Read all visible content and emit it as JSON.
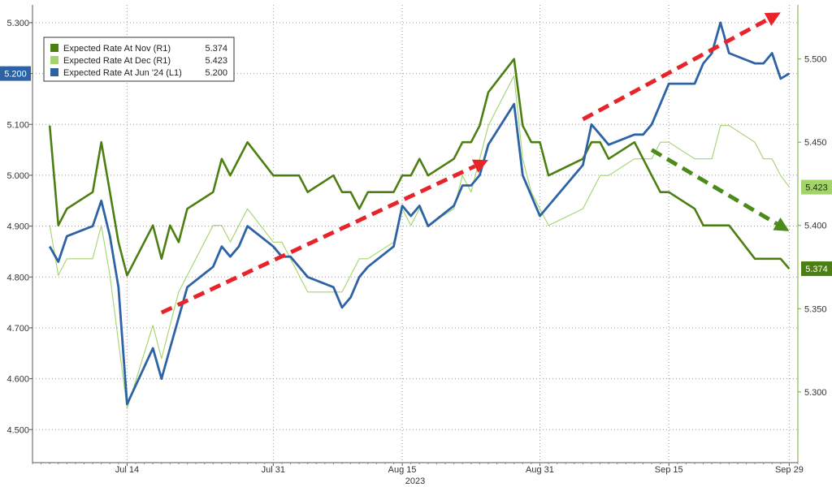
{
  "chart_data": {
    "type": "line",
    "title": "",
    "xlabel": "2023",
    "x_ticks": [
      "Jul 14",
      "Jul 31",
      "Aug 15",
      "Aug 31",
      "Sep 15",
      "Sep 29"
    ],
    "left_axis": {
      "ticks": [
        "4.500",
        "4.600",
        "4.700",
        "4.800",
        "4.900",
        "5.000",
        "5.100",
        "5.200",
        "5.300"
      ],
      "range": [
        4.435,
        5.335
      ]
    },
    "right_axis": {
      "ticks": [
        "5.300",
        "5.350",
        "5.400",
        "5.450",
        "5.500"
      ],
      "range": [
        5.2575,
        5.5325
      ]
    },
    "grid": true,
    "legend_position": "top-left",
    "series": [
      {
        "name": "Expected Rate At Nov (R1)",
        "last_value": "5.374",
        "axis": "right",
        "color": "#4c7f12",
        "points": [
          [
            "Jul 5",
            5.46
          ],
          [
            "Jul 6",
            5.4
          ],
          [
            "Jul 7",
            5.41
          ],
          [
            "Jul 10",
            5.42
          ],
          [
            "Jul 11",
            5.45
          ],
          [
            "Jul 12",
            5.42
          ],
          [
            "Jul 13",
            5.39
          ],
          [
            "Jul 14",
            5.37
          ],
          [
            "Jul 17",
            5.4
          ],
          [
            "Jul 18",
            5.38
          ],
          [
            "Jul 19",
            5.4
          ],
          [
            "Jul 20",
            5.39
          ],
          [
            "Jul 21",
            5.41
          ],
          [
            "Jul 24",
            5.42
          ],
          [
            "Jul 25",
            5.44
          ],
          [
            "Jul 26",
            5.43
          ],
          [
            "Jul 27",
            5.44
          ],
          [
            "Jul 28",
            5.45
          ],
          [
            "Jul 31",
            5.43
          ],
          [
            "Aug 1",
            5.43
          ],
          [
            "Aug 2",
            5.43
          ],
          [
            "Aug 3",
            5.43
          ],
          [
            "Aug 4",
            5.42
          ],
          [
            "Aug 7",
            5.43
          ],
          [
            "Aug 8",
            5.42
          ],
          [
            "Aug 9",
            5.42
          ],
          [
            "Aug 10",
            5.41
          ],
          [
            "Aug 11",
            5.42
          ],
          [
            "Aug 14",
            5.42
          ],
          [
            "Aug 15",
            5.43
          ],
          [
            "Aug 16",
            5.43
          ],
          [
            "Aug 17",
            5.44
          ],
          [
            "Aug 18",
            5.43
          ],
          [
            "Aug 21",
            5.44
          ],
          [
            "Aug 22",
            5.45
          ],
          [
            "Aug 23",
            5.45
          ],
          [
            "Aug 24",
            5.46
          ],
          [
            "Aug 25",
            5.48
          ],
          [
            "Aug 28",
            5.5
          ],
          [
            "Aug 29",
            5.46
          ],
          [
            "Aug 30",
            5.45
          ],
          [
            "Aug 31",
            5.45
          ],
          [
            "Sep 1",
            5.43
          ],
          [
            "Sep 5",
            5.44
          ],
          [
            "Sep 6",
            5.45
          ],
          [
            "Sep 7",
            5.45
          ],
          [
            "Sep 8",
            5.44
          ],
          [
            "Sep 11",
            5.45
          ],
          [
            "Sep 12",
            5.44
          ],
          [
            "Sep 13",
            5.43
          ],
          [
            "Sep 14",
            5.42
          ],
          [
            "Sep 15",
            5.42
          ],
          [
            "Sep 18",
            5.41
          ],
          [
            "Sep 19",
            5.4
          ],
          [
            "Sep 20",
            5.4
          ],
          [
            "Sep 21",
            5.4
          ],
          [
            "Sep 22",
            5.4
          ],
          [
            "Sep 25",
            5.38
          ],
          [
            "Sep 26",
            5.38
          ],
          [
            "Sep 27",
            5.38
          ],
          [
            "Sep 28",
            5.38
          ],
          [
            "Sep 29",
            5.374
          ]
        ]
      },
      {
        "name": "Expected Rate At Dec (R1)",
        "last_value": "5.423",
        "axis": "right",
        "color": "#a3d46a",
        "points": [
          [
            "Jul 5",
            5.4
          ],
          [
            "Jul 6",
            5.37
          ],
          [
            "Jul 7",
            5.38
          ],
          [
            "Jul 10",
            5.38
          ],
          [
            "Jul 11",
            5.4
          ],
          [
            "Jul 12",
            5.37
          ],
          [
            "Jul 13",
            5.33
          ],
          [
            "Jul 14",
            5.29
          ],
          [
            "Jul 17",
            5.34
          ],
          [
            "Jul 18",
            5.32
          ],
          [
            "Jul 19",
            5.34
          ],
          [
            "Jul 20",
            5.36
          ],
          [
            "Jul 21",
            5.37
          ],
          [
            "Jul 24",
            5.4
          ],
          [
            "Jul 25",
            5.4
          ],
          [
            "Jul 26",
            5.39
          ],
          [
            "Jul 27",
            5.4
          ],
          [
            "Jul 28",
            5.41
          ],
          [
            "Jul 31",
            5.39
          ],
          [
            "Aug 1",
            5.39
          ],
          [
            "Aug 2",
            5.38
          ],
          [
            "Aug 3",
            5.37
          ],
          [
            "Aug 4",
            5.36
          ],
          [
            "Aug 7",
            5.36
          ],
          [
            "Aug 8",
            5.36
          ],
          [
            "Aug 9",
            5.37
          ],
          [
            "Aug 10",
            5.38
          ],
          [
            "Aug 11",
            5.38
          ],
          [
            "Aug 14",
            5.39
          ],
          [
            "Aug 15",
            5.41
          ],
          [
            "Aug 16",
            5.4
          ],
          [
            "Aug 17",
            5.41
          ],
          [
            "Aug 18",
            5.4
          ],
          [
            "Aug 21",
            5.41
          ],
          [
            "Aug 22",
            5.43
          ],
          [
            "Aug 23",
            5.42
          ],
          [
            "Aug 24",
            5.44
          ],
          [
            "Aug 25",
            5.46
          ],
          [
            "Aug 28",
            5.49
          ],
          [
            "Aug 29",
            5.44
          ],
          [
            "Aug 30",
            5.42
          ],
          [
            "Aug 31",
            5.41
          ],
          [
            "Sep 1",
            5.4
          ],
          [
            "Sep 5",
            5.41
          ],
          [
            "Sep 6",
            5.42
          ],
          [
            "Sep 7",
            5.43
          ],
          [
            "Sep 8",
            5.43
          ],
          [
            "Sep 11",
            5.44
          ],
          [
            "Sep 12",
            5.44
          ],
          [
            "Sep 13",
            5.44
          ],
          [
            "Sep 14",
            5.45
          ],
          [
            "Sep 15",
            5.45
          ],
          [
            "Sep 18",
            5.44
          ],
          [
            "Sep 19",
            5.44
          ],
          [
            "Sep 20",
            5.44
          ],
          [
            "Sep 21",
            5.46
          ],
          [
            "Sep 22",
            5.46
          ],
          [
            "Sep 25",
            5.45
          ],
          [
            "Sep 26",
            5.44
          ],
          [
            "Sep 27",
            5.44
          ],
          [
            "Sep 28",
            5.43
          ],
          [
            "Sep 29",
            5.423
          ]
        ]
      },
      {
        "name": "Expected Rate At Jun '24 (L1)",
        "last_value": "5.200",
        "axis": "left",
        "color": "#2d63a5",
        "points": [
          [
            "Jul 5",
            4.86
          ],
          [
            "Jul 6",
            4.83
          ],
          [
            "Jul 7",
            4.88
          ],
          [
            "Jul 10",
            4.9
          ],
          [
            "Jul 11",
            4.95
          ],
          [
            "Jul 12",
            4.88
          ],
          [
            "Jul 13",
            4.78
          ],
          [
            "Jul 14",
            4.55
          ],
          [
            "Jul 17",
            4.66
          ],
          [
            "Jul 18",
            4.6
          ],
          [
            "Jul 19",
            4.66
          ],
          [
            "Jul 20",
            4.72
          ],
          [
            "Jul 21",
            4.78
          ],
          [
            "Jul 24",
            4.82
          ],
          [
            "Jul 25",
            4.86
          ],
          [
            "Jul 26",
            4.84
          ],
          [
            "Jul 27",
            4.86
          ],
          [
            "Jul 28",
            4.9
          ],
          [
            "Jul 31",
            4.86
          ],
          [
            "Aug 1",
            4.84
          ],
          [
            "Aug 2",
            4.84
          ],
          [
            "Aug 3",
            4.82
          ],
          [
            "Aug 4",
            4.8
          ],
          [
            "Aug 7",
            4.78
          ],
          [
            "Aug 8",
            4.74
          ],
          [
            "Aug 9",
            4.76
          ],
          [
            "Aug 10",
            4.8
          ],
          [
            "Aug 11",
            4.82
          ],
          [
            "Aug 14",
            4.86
          ],
          [
            "Aug 15",
            4.94
          ],
          [
            "Aug 16",
            4.92
          ],
          [
            "Aug 17",
            4.94
          ],
          [
            "Aug 18",
            4.9
          ],
          [
            "Aug 21",
            4.94
          ],
          [
            "Aug 22",
            4.98
          ],
          [
            "Aug 23",
            4.98
          ],
          [
            "Aug 24",
            5.0
          ],
          [
            "Aug 25",
            5.06
          ],
          [
            "Aug 28",
            5.14
          ],
          [
            "Aug 29",
            5.0
          ],
          [
            "Aug 30",
            4.96
          ],
          [
            "Aug 31",
            4.92
          ],
          [
            "Sep 1",
            4.94
          ],
          [
            "Sep 5",
            5.02
          ],
          [
            "Sep 6",
            5.1
          ],
          [
            "Sep 7",
            5.08
          ],
          [
            "Sep 8",
            5.06
          ],
          [
            "Sep 11",
            5.08
          ],
          [
            "Sep 12",
            5.08
          ],
          [
            "Sep 13",
            5.1
          ],
          [
            "Sep 14",
            5.14
          ],
          [
            "Sep 15",
            5.18
          ],
          [
            "Sep 18",
            5.18
          ],
          [
            "Sep 19",
            5.22
          ],
          [
            "Sep 20",
            5.24
          ],
          [
            "Sep 21",
            5.3
          ],
          [
            "Sep 22",
            5.24
          ],
          [
            "Sep 25",
            5.22
          ],
          [
            "Sep 26",
            5.22
          ],
          [
            "Sep 27",
            5.24
          ],
          [
            "Sep 28",
            5.19
          ],
          [
            "Sep 29",
            5.2
          ]
        ]
      }
    ],
    "annotations": [
      {
        "name": "trend-arrow-jul-aug",
        "kind": "dashed-arrow",
        "color": "#e8242b",
        "from": [
          "Jul 18",
          4.73
        ],
        "to": [
          "Aug 25",
          5.03
        ]
      },
      {
        "name": "trend-arrow-sep-up",
        "kind": "dashed-arrow",
        "color": "#e8242b",
        "from": [
          "Sep 5",
          5.11
        ],
        "to": [
          "Sep 28",
          5.32
        ]
      },
      {
        "name": "trend-arrow-sep-down",
        "kind": "dashed-arrow",
        "color": "#4c8a1a",
        "from": [
          "Sep 13",
          5.05
        ],
        "to": [
          "Sep 29",
          4.89
        ]
      }
    ]
  }
}
